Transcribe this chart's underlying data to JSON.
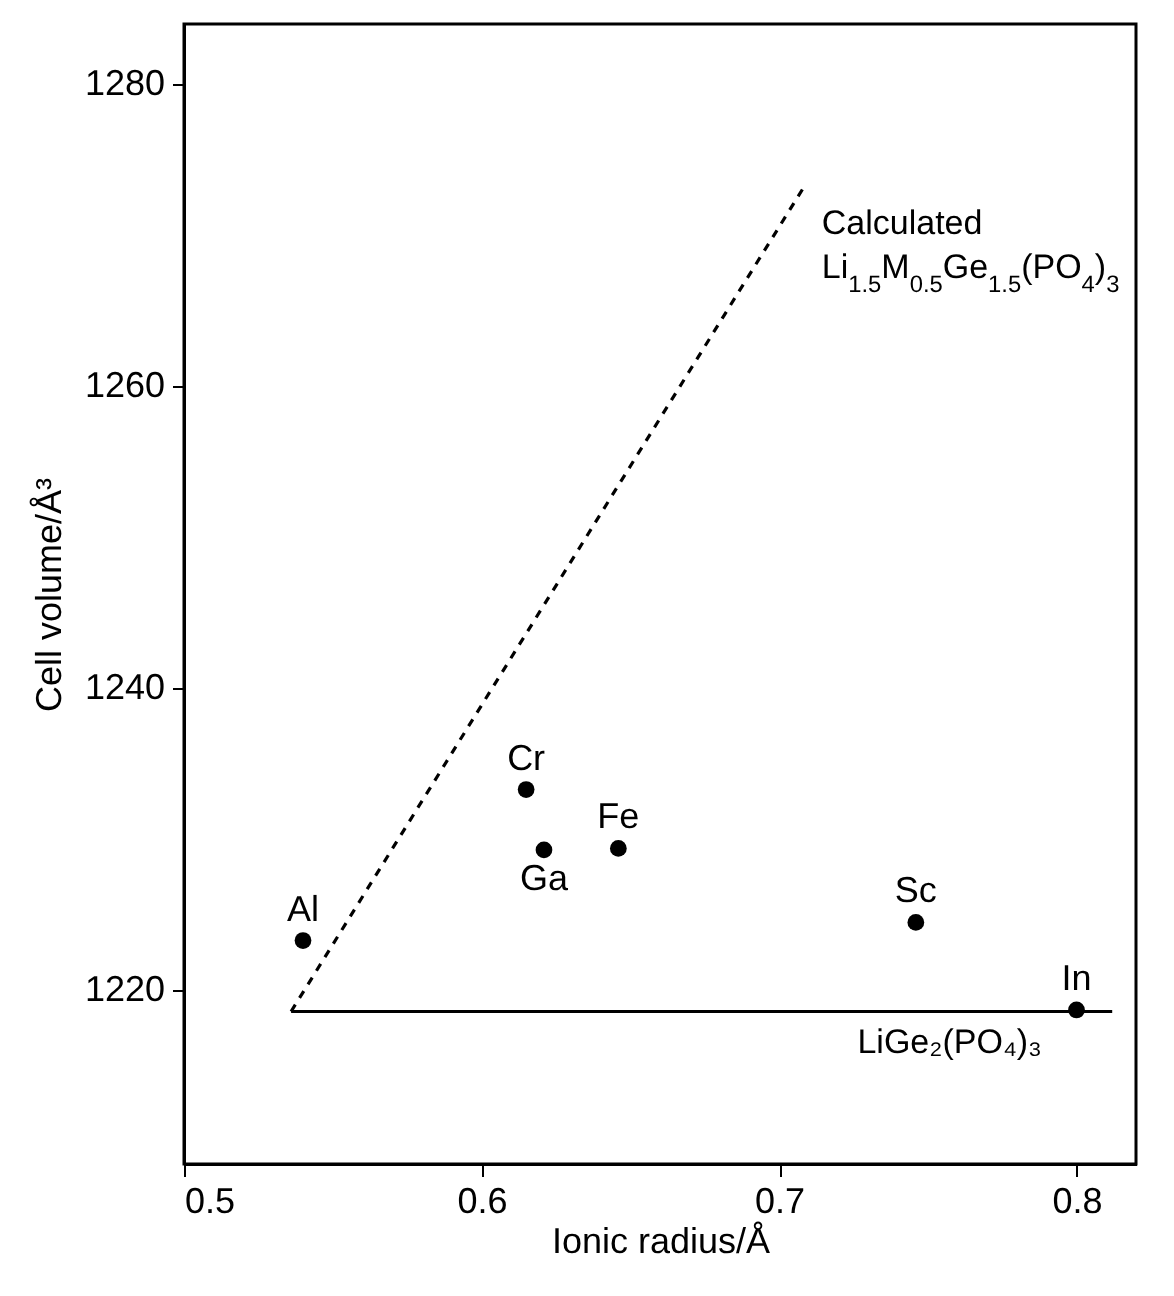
{
  "chart_data": {
    "type": "scatter",
    "xlabel": "Ionic radius/Å",
    "ylabel": "Cell volume/Å³",
    "xlim": [
      0.5,
      0.82
    ],
    "xticks": [
      0.5,
      0.6,
      0.7,
      0.8
    ],
    "ylim": [
      1208.5,
      1284
    ],
    "yticks": [
      1220,
      1240,
      1260,
      1280
    ],
    "grid": false,
    "marker": "circle",
    "series": [
      {
        "color": "#000000",
        "x": [
          0.54,
          0.615,
          0.621,
          0.646,
          0.746,
          0.8
        ],
        "values": [
          1223.3,
          1233.3,
          1229.3,
          1229.4,
          1224.5,
          1218.7
        ]
      },
      {
        "type": "line",
        "name": "LiGe₂(PO₄)₃",
        "color": "#000000",
        "marker": "none",
        "line_style": "solid",
        "x": [
          0.536,
          0.812
        ],
        "values": [
          1218.6,
          1218.6
        ]
      },
      {
        "type": "line",
        "name": "Calculated Li$_{1.5}$M$_{0.5}$Ge$_{1.5}$(PO$_{4}$)$_{3}$",
        "color": "#000000",
        "marker": "none",
        "line_style": "dashed",
        "x": [
          0.536,
          0.709
        ],
        "values": [
          1218.6,
          1273.4
        ]
      }
    ],
    "annotations": [
      {
        "text": "Al",
        "x": 0.54,
        "y": 1223.3
      },
      {
        "text": "Cr",
        "x": 0.615,
        "y": 1233.3
      },
      {
        "text": "Ga",
        "x": 0.621,
        "y": 1229.3
      },
      {
        "text": "Fe",
        "x": 0.646,
        "y": 1229.4
      },
      {
        "text": "Sc",
        "x": 0.746,
        "y": 1224.5
      },
      {
        "text": "In",
        "x": 0.8,
        "y": 1218.7
      }
    ]
  }
}
